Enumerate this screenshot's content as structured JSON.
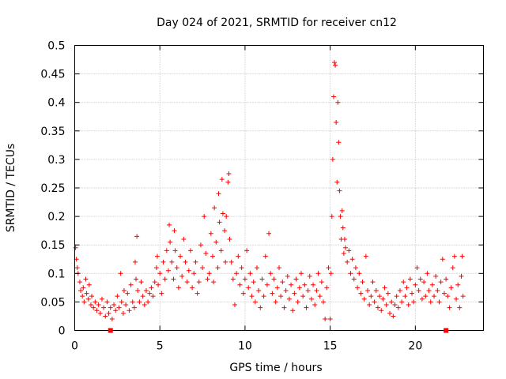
{
  "chart_data": {
    "type": "scatter",
    "title": "Day 024 of 2021, SRMTID for receiver cn12",
    "xlabel": "GPS time / hours",
    "ylabel": "SRMTID / TECUs",
    "xlim": [
      0,
      24
    ],
    "ylim": [
      0,
      0.5
    ],
    "x_ticks": [
      0,
      5,
      10,
      15,
      20
    ],
    "x_tick_labels": [
      "0",
      "5",
      "10",
      "15",
      "20"
    ],
    "y_ticks": [
      0,
      0.05,
      0.1,
      0.15,
      0.2,
      0.25,
      0.3,
      0.35,
      0.4,
      0.45,
      0.5
    ],
    "y_tick_labels": [
      "0",
      "0.05",
      "0.1",
      "0.15",
      "0.2",
      "0.25",
      "0.3",
      "0.35",
      "0.4",
      "0.45",
      "0.5"
    ],
    "grid": true,
    "marker": "plus",
    "color": "#ff0000",
    "series": [
      {
        "name": "SRMTID",
        "points": [
          [
            0.05,
            0.145
          ],
          [
            0.1,
            0.125
          ],
          [
            0.15,
            0.11
          ],
          [
            0.2,
            0.1
          ],
          [
            0.3,
            0.085
          ],
          [
            0.35,
            0.07
          ],
          [
            0.45,
            0.06
          ],
          [
            0.5,
            0.075
          ],
          [
            0.55,
            0.05
          ],
          [
            0.65,
            0.09
          ],
          [
            0.7,
            0.065
          ],
          [
            0.8,
            0.055
          ],
          [
            0.85,
            0.08
          ],
          [
            0.95,
            0.045
          ],
          [
            1.0,
            0.06
          ],
          [
            1.1,
            0.04
          ],
          [
            1.2,
            0.05
          ],
          [
            1.3,
            0.035
          ],
          [
            1.4,
            0.045
          ],
          [
            1.5,
            0.03
          ],
          [
            1.6,
            0.055
          ],
          [
            1.7,
            0.04
          ],
          [
            1.8,
            0.025
          ],
          [
            1.9,
            0.05
          ],
          [
            2.0,
            0.03
          ],
          [
            2.1,
            0.04
          ],
          [
            2.2,
            0.02
          ],
          [
            2.3,
            0.045
          ],
          [
            2.4,
            0.035
          ],
          [
            2.5,
            0.06
          ],
          [
            2.6,
            0.04
          ],
          [
            2.7,
            0.1
          ],
          [
            2.75,
            0.05
          ],
          [
            2.85,
            0.03
          ],
          [
            2.9,
            0.07
          ],
          [
            3.0,
            0.045
          ],
          [
            3.1,
            0.065
          ],
          [
            3.2,
            0.035
          ],
          [
            3.3,
            0.08
          ],
          [
            3.4,
            0.05
          ],
          [
            3.5,
            0.04
          ],
          [
            3.55,
            0.12
          ],
          [
            3.6,
            0.09
          ],
          [
            3.65,
            0.165
          ],
          [
            3.7,
            0.07
          ],
          [
            3.8,
            0.05
          ],
          [
            3.9,
            0.085
          ],
          [
            4.0,
            0.06
          ],
          [
            4.1,
            0.045
          ],
          [
            4.2,
            0.07
          ],
          [
            4.3,
            0.05
          ],
          [
            4.4,
            0.065
          ],
          [
            4.5,
            0.075
          ],
          [
            4.6,
            0.06
          ],
          [
            4.7,
            0.085
          ],
          [
            4.8,
            0.11
          ],
          [
            4.85,
            0.13
          ],
          [
            4.9,
            0.08
          ],
          [
            5.0,
            0.1
          ],
          [
            5.1,
            0.065
          ],
          [
            5.2,
            0.12
          ],
          [
            5.3,
            0.09
          ],
          [
            5.4,
            0.14
          ],
          [
            5.5,
            0.105
          ],
          [
            5.55,
            0.185
          ],
          [
            5.6,
            0.155
          ],
          [
            5.7,
            0.12
          ],
          [
            5.8,
            0.09
          ],
          [
            5.85,
            0.175
          ],
          [
            5.9,
            0.14
          ],
          [
            6.0,
            0.11
          ],
          [
            6.1,
            0.075
          ],
          [
            6.2,
            0.13
          ],
          [
            6.3,
            0.095
          ],
          [
            6.4,
            0.16
          ],
          [
            6.5,
            0.12
          ],
          [
            6.6,
            0.085
          ],
          [
            6.7,
            0.105
          ],
          [
            6.8,
            0.14
          ],
          [
            6.9,
            0.075
          ],
          [
            7.0,
            0.1
          ],
          [
            7.1,
            0.12
          ],
          [
            7.2,
            0.065
          ],
          [
            7.3,
            0.085
          ],
          [
            7.4,
            0.15
          ],
          [
            7.5,
            0.11
          ],
          [
            7.6,
            0.2
          ],
          [
            7.7,
            0.135
          ],
          [
            7.8,
            0.09
          ],
          [
            7.9,
            0.1
          ],
          [
            8.0,
            0.17
          ],
          [
            8.1,
            0.13
          ],
          [
            8.15,
            0.085
          ],
          [
            8.2,
            0.215
          ],
          [
            8.3,
            0.155
          ],
          [
            8.4,
            0.11
          ],
          [
            8.45,
            0.24
          ],
          [
            8.5,
            0.19
          ],
          [
            8.6,
            0.14
          ],
          [
            8.65,
            0.265
          ],
          [
            8.7,
            0.205
          ],
          [
            8.8,
            0.175
          ],
          [
            8.85,
            0.12
          ],
          [
            8.9,
            0.2
          ],
          [
            9.0,
            0.26
          ],
          [
            9.05,
            0.275
          ],
          [
            9.1,
            0.16
          ],
          [
            9.2,
            0.12
          ],
          [
            9.3,
            0.09
          ],
          [
            9.4,
            0.045
          ],
          [
            9.5,
            0.1
          ],
          [
            9.6,
            0.13
          ],
          [
            9.7,
            0.08
          ],
          [
            9.8,
            0.11
          ],
          [
            9.9,
            0.065
          ],
          [
            10.0,
            0.09
          ],
          [
            10.1,
            0.14
          ],
          [
            10.2,
            0.075
          ],
          [
            10.3,
            0.1
          ],
          [
            10.4,
            0.06
          ],
          [
            10.5,
            0.085
          ],
          [
            10.6,
            0.05
          ],
          [
            10.7,
            0.11
          ],
          [
            10.8,
            0.07
          ],
          [
            10.9,
            0.04
          ],
          [
            11.0,
            0.09
          ],
          [
            11.1,
            0.06
          ],
          [
            11.2,
            0.13
          ],
          [
            11.3,
            0.08
          ],
          [
            11.4,
            0.17
          ],
          [
            11.5,
            0.1
          ],
          [
            11.6,
            0.065
          ],
          [
            11.7,
            0.09
          ],
          [
            11.8,
            0.05
          ],
          [
            11.9,
            0.075
          ],
          [
            12.0,
            0.11
          ],
          [
            12.1,
            0.06
          ],
          [
            12.2,
            0.085
          ],
          [
            12.3,
            0.04
          ],
          [
            12.4,
            0.07
          ],
          [
            12.5,
            0.095
          ],
          [
            12.6,
            0.055
          ],
          [
            12.7,
            0.08
          ],
          [
            12.8,
            0.035
          ],
          [
            12.9,
            0.065
          ],
          [
            13.0,
            0.09
          ],
          [
            13.1,
            0.05
          ],
          [
            13.2,
            0.075
          ],
          [
            13.3,
            0.1
          ],
          [
            13.4,
            0.06
          ],
          [
            13.5,
            0.08
          ],
          [
            13.6,
            0.04
          ],
          [
            13.7,
            0.07
          ],
          [
            13.8,
            0.095
          ],
          [
            13.9,
            0.055
          ],
          [
            14.0,
            0.08
          ],
          [
            14.1,
            0.045
          ],
          [
            14.2,
            0.07
          ],
          [
            14.3,
            0.1
          ],
          [
            14.4,
            0.06
          ],
          [
            14.5,
            0.085
          ],
          [
            14.6,
            0.05
          ],
          [
            14.7,
            0.02
          ],
          [
            14.8,
            0.075
          ],
          [
            14.9,
            0.11
          ],
          [
            15.0,
            0.02
          ],
          [
            15.05,
            0.1
          ],
          [
            15.1,
            0.2
          ],
          [
            15.15,
            0.3
          ],
          [
            15.2,
            0.41
          ],
          [
            15.25,
            0.47
          ],
          [
            15.3,
            0.465
          ],
          [
            15.35,
            0.365
          ],
          [
            15.4,
            0.26
          ],
          [
            15.45,
            0.4
          ],
          [
            15.5,
            0.33
          ],
          [
            15.55,
            0.245
          ],
          [
            15.6,
            0.2
          ],
          [
            15.65,
            0.16
          ],
          [
            15.7,
            0.21
          ],
          [
            15.75,
            0.18
          ],
          [
            15.8,
            0.135
          ],
          [
            15.85,
            0.16
          ],
          [
            15.9,
            0.145
          ],
          [
            16.0,
            0.12
          ],
          [
            16.1,
            0.14
          ],
          [
            16.2,
            0.1
          ],
          [
            16.3,
            0.125
          ],
          [
            16.4,
            0.09
          ],
          [
            16.5,
            0.11
          ],
          [
            16.6,
            0.075
          ],
          [
            16.7,
            0.1
          ],
          [
            16.8,
            0.065
          ],
          [
            16.9,
            0.085
          ],
          [
            17.0,
            0.055
          ],
          [
            17.1,
            0.13
          ],
          [
            17.2,
            0.07
          ],
          [
            17.3,
            0.045
          ],
          [
            17.4,
            0.06
          ],
          [
            17.5,
            0.085
          ],
          [
            17.6,
            0.05
          ],
          [
            17.7,
            0.07
          ],
          [
            17.8,
            0.04
          ],
          [
            17.9,
            0.06
          ],
          [
            18.0,
            0.035
          ],
          [
            18.1,
            0.055
          ],
          [
            18.2,
            0.075
          ],
          [
            18.3,
            0.045
          ],
          [
            18.4,
            0.065
          ],
          [
            18.5,
            0.03
          ],
          [
            18.6,
            0.05
          ],
          [
            18.7,
            0.025
          ],
          [
            18.8,
            0.045
          ],
          [
            18.9,
            0.06
          ],
          [
            19.0,
            0.04
          ],
          [
            19.1,
            0.07
          ],
          [
            19.2,
            0.05
          ],
          [
            19.3,
            0.085
          ],
          [
            19.4,
            0.06
          ],
          [
            19.5,
            0.075
          ],
          [
            19.6,
            0.045
          ],
          [
            19.7,
            0.09
          ],
          [
            19.8,
            0.065
          ],
          [
            19.9,
            0.05
          ],
          [
            20.0,
            0.08
          ],
          [
            20.1,
            0.11
          ],
          [
            20.2,
            0.07
          ],
          [
            20.3,
            0.09
          ],
          [
            20.4,
            0.055
          ],
          [
            20.5,
            0.085
          ],
          [
            20.6,
            0.06
          ],
          [
            20.7,
            0.1
          ],
          [
            20.8,
            0.07
          ],
          [
            20.9,
            0.05
          ],
          [
            21.0,
            0.08
          ],
          [
            21.1,
            0.06
          ],
          [
            21.2,
            0.095
          ],
          [
            21.3,
            0.07
          ],
          [
            21.4,
            0.05
          ],
          [
            21.5,
            0.085
          ],
          [
            21.6,
            0.125
          ],
          [
            21.7,
            0.065
          ],
          [
            21.8,
            0.09
          ],
          [
            21.9,
            0.06
          ],
          [
            22.0,
            0.04
          ],
          [
            22.1,
            0.075
          ],
          [
            22.2,
            0.11
          ],
          [
            22.3,
            0.13
          ],
          [
            22.4,
            0.055
          ],
          [
            22.5,
            0.08
          ],
          [
            22.6,
            0.04
          ],
          [
            22.7,
            0.095
          ],
          [
            22.75,
            0.13
          ],
          [
            22.8,
            0.06
          ]
        ]
      }
    ],
    "axis_markers": [
      {
        "x": 2.1,
        "y": 0.0
      },
      {
        "x": 21.8,
        "y": 0.0
      }
    ]
  }
}
